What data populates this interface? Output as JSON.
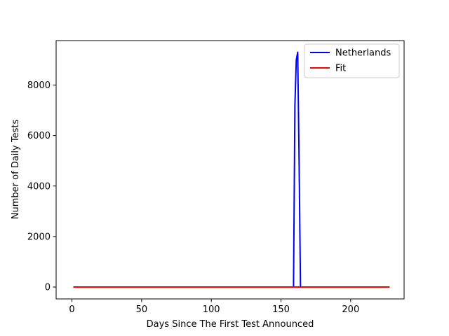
{
  "chart_data": {
    "type": "line",
    "xlabel": "Days Since The First Test Announced",
    "ylabel": "Number of Daily Tests",
    "xlim": [
      -11.35,
      238.35
    ],
    "ylim": [
      -470,
      9760
    ],
    "x_ticks": [
      0,
      50,
      100,
      150,
      200
    ],
    "x_tick_labels": [
      "0",
      "50",
      "100",
      "150",
      "200"
    ],
    "y_ticks": [
      0,
      2000,
      4000,
      6000,
      8000
    ],
    "y_tick_labels": [
      "0",
      "2000",
      "4000",
      "6000",
      "8000"
    ],
    "grid": false,
    "legend_position": "top-right",
    "series": [
      {
        "name": "Netherlands",
        "color": "#0000ff",
        "x": [
          1,
          20,
          40,
          60,
          80,
          100,
          120,
          140,
          159,
          160,
          161,
          162,
          163,
          164,
          165
        ],
        "y": [
          0,
          0,
          0,
          0,
          0,
          0,
          0,
          0,
          0,
          7200,
          9000,
          9300,
          5000,
          0,
          0
        ]
      },
      {
        "name": "Fit",
        "color": "#ff0000",
        "x": [
          1,
          50,
          100,
          150,
          200,
          228
        ],
        "y": [
          0,
          0,
          0,
          0,
          0,
          0
        ]
      }
    ]
  }
}
